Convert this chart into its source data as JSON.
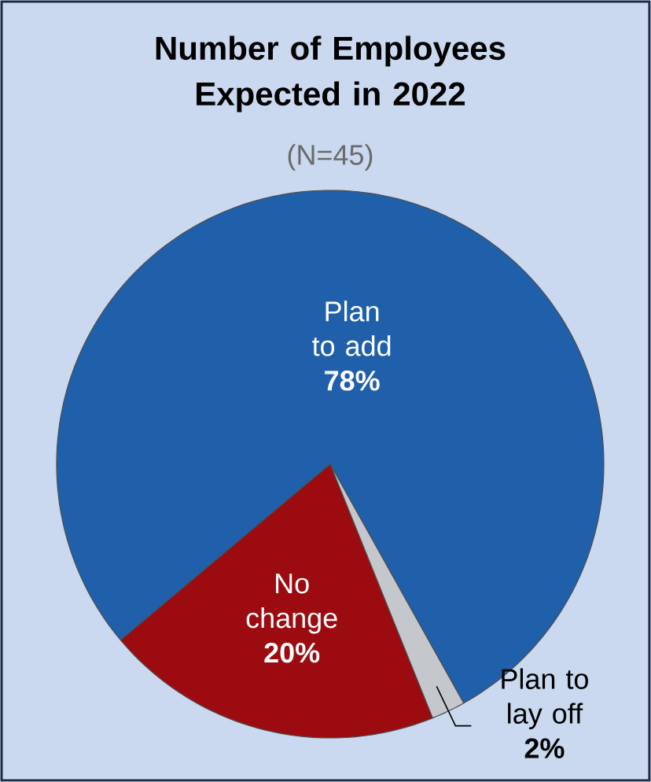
{
  "chart_data": {
    "type": "pie",
    "title": "Number of Employees Expected in 2022",
    "subtitle": "(N=45)",
    "categories": [
      "Plan to add",
      "No change",
      "Plan to lay off"
    ],
    "values": [
      78,
      20,
      2
    ],
    "value_labels": [
      "78%",
      "20%",
      "2%"
    ],
    "colors": [
      "#2060aa",
      "#9c0b10",
      "#c4c8cc"
    ]
  }
}
